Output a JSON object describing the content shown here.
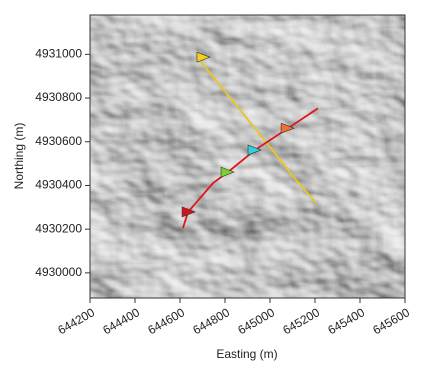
{
  "chart_data": {
    "type": "line",
    "xlabel": "Easting (m)",
    "ylabel": "Northing (m)",
    "xlim": [
      644200,
      645600
    ],
    "ylim": [
      4929885,
      4931180
    ],
    "xticks": [
      644200,
      644400,
      644600,
      644800,
      645000,
      645200,
      645400,
      645600
    ],
    "yticks": [
      4930000,
      4930200,
      4930400,
      4930600,
      4930800,
      4931000
    ],
    "series": [
      {
        "color": "#e8c820",
        "x": [
          644680,
          644933,
          645116,
          645204
        ],
        "y": [
          4930982,
          4930662,
          4930425,
          4930320
        ]
      },
      {
        "color": "#e0141c",
        "x": [
          644613,
          644636,
          644747,
          644813,
          644933,
          645080,
          645213
        ],
        "y": [
          4930205,
          4930279,
          4930411,
          4930461,
          4930562,
          4930662,
          4930753
        ]
      }
    ],
    "markers": {
      "x": [
        644702,
        644636,
        644809,
        644929,
        645076
      ],
      "y": [
        4930987,
        4930279,
        4930461,
        4930562,
        4930662
      ],
      "colors": [
        "#f0d020",
        "#d0141c",
        "#7ad030",
        "#30d0e0",
        "#f07030"
      ]
    }
  }
}
